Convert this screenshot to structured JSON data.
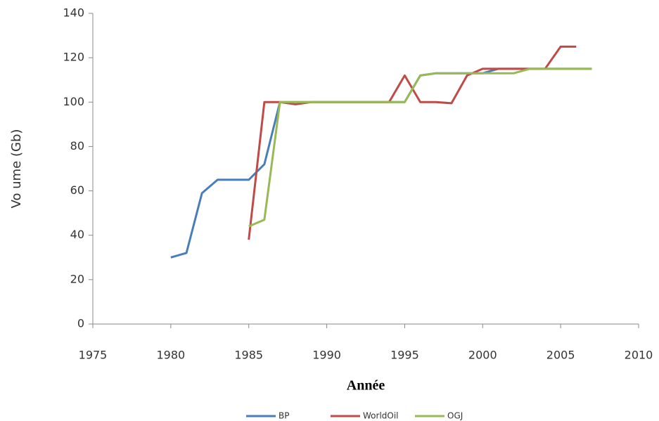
{
  "chart_data": {
    "type": "line",
    "x_label": "Année",
    "y_label": "Vo ume (Gb)",
    "x": [
      1980,
      1981,
      1982,
      1983,
      1984,
      1985,
      1986,
      1987,
      1988,
      1989,
      1990,
      1991,
      1992,
      1993,
      1994,
      1995,
      1996,
      1997,
      1998,
      1999,
      2000,
      2001,
      2002,
      2003,
      2004,
      2005,
      2006,
      2007
    ],
    "series": [
      {
        "name": "BP",
        "color": "#4a7ebb",
        "values": [
          30,
          32,
          59,
          65,
          65,
          65,
          72,
          100,
          100,
          100,
          100,
          100,
          100,
          100,
          100,
          100,
          112,
          113,
          113,
          113,
          113,
          115,
          115,
          115,
          115,
          115,
          115,
          115
        ]
      },
      {
        "name": "WorldOil",
        "color": "#be4b48",
        "values": [
          null,
          null,
          null,
          null,
          null,
          38,
          100,
          100,
          99,
          100,
          100,
          100,
          100,
          100,
          100,
          112,
          100,
          100,
          99.5,
          112,
          115,
          115,
          115,
          115,
          115,
          125,
          125,
          null
        ]
      },
      {
        "name": "OGJ",
        "color": "#98b954",
        "values": [
          null,
          null,
          null,
          null,
          null,
          44,
          47,
          100,
          100,
          100,
          100,
          100,
          100,
          100,
          100,
          100,
          112,
          113,
          113,
          113,
          113,
          113,
          113,
          115,
          115,
          115,
          115,
          115
        ]
      }
    ],
    "xlim": [
      1975,
      2010
    ],
    "xticks": [
      1975,
      1980,
      1985,
      1990,
      1995,
      2000,
      2005,
      2010
    ],
    "ylim": [
      0,
      140
    ],
    "yticks": [
      0,
      20,
      40,
      60,
      80,
      100,
      120,
      140
    ],
    "legend": "bottom",
    "grid": false
  }
}
